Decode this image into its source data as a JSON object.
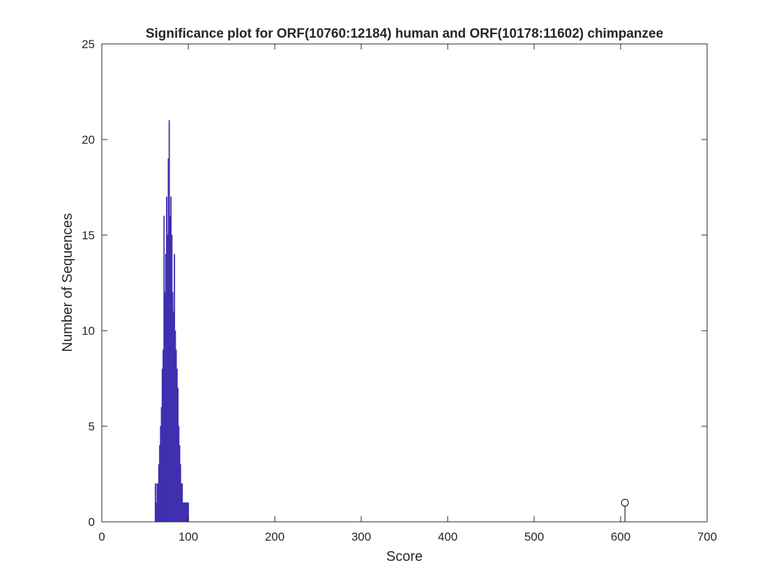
{
  "chart_data": {
    "type": "bar",
    "title": "Significance plot for ORF(10760:12184) human and ORF(10178:11602) chimpanzee",
    "xlabel": "Score",
    "ylabel": "Number of Sequences",
    "xlim": [
      0,
      700
    ],
    "ylim": [
      0,
      25
    ],
    "xticks": [
      0,
      100,
      200,
      300,
      400,
      500,
      600,
      700
    ],
    "yticks": [
      0,
      5,
      10,
      15,
      20,
      25
    ],
    "grid": false,
    "bar_color": "#4030b0",
    "series": [
      {
        "type": "bar",
        "x": [
          62,
          63,
          64,
          65,
          66,
          67,
          68,
          69,
          70,
          71,
          72,
          73,
          74,
          75,
          76,
          77,
          78,
          79,
          80,
          81,
          82,
          83,
          84,
          85,
          86,
          87,
          88,
          89,
          90,
          91,
          92,
          93,
          94,
          95,
          96,
          97,
          98,
          99,
          100
        ],
        "values": [
          2,
          1,
          2,
          2,
          3,
          4,
          5,
          6,
          8,
          9,
          16,
          12,
          14,
          17,
          15,
          19,
          21,
          16,
          17,
          15,
          12,
          11,
          14,
          10,
          9,
          8,
          7,
          5,
          4,
          3,
          2,
          2,
          1,
          1,
          1,
          1,
          1,
          1,
          1
        ]
      },
      {
        "type": "stem",
        "x": [
          605
        ],
        "values": [
          1
        ],
        "marker": "circle",
        "color": "#000000"
      }
    ]
  }
}
